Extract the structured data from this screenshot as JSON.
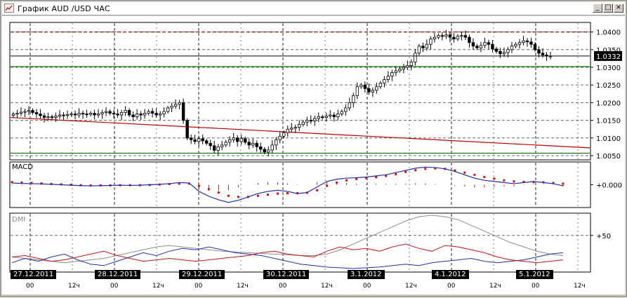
{
  "window": {
    "title": "График AUD /USD ЧАС",
    "buttons": {
      "minimize": "_",
      "maximize": "□",
      "close": "×"
    }
  },
  "chart_data": [
    {
      "type": "candlestick",
      "name": "AUD/USD",
      "ylim": [
        1.004,
        1.0425
      ],
      "y_ticks": [
        "1.0400",
        "1.0350",
        "1.0300",
        "1.0250",
        "1.0200",
        "1.0150",
        "1.0100",
        "1.0050"
      ],
      "y_tick_values": [
        1.04,
        1.035,
        1.03,
        1.025,
        1.02,
        1.015,
        1.01,
        1.005
      ],
      "current_price": "1.0332",
      "current_price_value": 1.0332,
      "horizontal_lines": [
        {
          "value": 1.04,
          "color": "#c00000",
          "style": "dashed"
        },
        {
          "value": 1.0302,
          "color": "#008000",
          "style": "solid"
        },
        {
          "value": 1.0057,
          "color": "#008000",
          "style": "solid"
        }
      ],
      "trend_line": {
        "from_bar": 0,
        "from_value": 1.0158,
        "to_bar": 140,
        "to_value": 1.0072,
        "color": "#c00000"
      },
      "close_series": [
        1.0168,
        1.017,
        1.0173,
        1.0175,
        1.0178,
        1.0172,
        1.0168,
        1.0163,
        1.0158,
        1.016,
        1.0158,
        1.0162,
        1.0165,
        1.0164,
        1.0166,
        1.0168,
        1.0165,
        1.017,
        1.0168,
        1.0167,
        1.017,
        1.0165,
        1.0168,
        1.0172,
        1.0175,
        1.017,
        1.0168,
        1.0165,
        1.0172,
        1.0178,
        1.0165,
        1.016,
        1.0168,
        1.0165,
        1.017,
        1.0175,
        1.017,
        1.0165,
        1.0168,
        1.0175,
        1.0185,
        1.019,
        1.0195,
        1.02,
        1.015,
        1.01,
        1.0095,
        1.009,
        1.0098,
        1.0092,
        1.0085,
        1.0078,
        1.0065,
        1.0075,
        1.008,
        1.0088,
        1.0095,
        1.01,
        1.009,
        1.0098,
        1.0088,
        1.008,
        1.0085,
        1.0075,
        1.0068,
        1.006,
        1.0066,
        1.008,
        1.0095,
        1.0105,
        1.0115,
        1.0125,
        1.0128,
        1.013,
        1.0138,
        1.0145,
        1.015,
        1.0148,
        1.0155,
        1.016,
        1.0158,
        1.0162,
        1.0165,
        1.016,
        1.0168,
        1.0175,
        1.0185,
        1.02,
        1.022,
        1.0245,
        1.025,
        1.024,
        1.023,
        1.0235,
        1.0245,
        1.0255,
        1.0265,
        1.0275,
        1.0285,
        1.029,
        1.0295,
        1.03,
        1.0305,
        1.0315,
        1.034,
        1.036,
        1.0355,
        1.0365,
        1.038,
        1.0385,
        1.039,
        1.0388,
        1.0392,
        1.0385,
        1.038,
        1.0388,
        1.039,
        1.0385,
        1.037,
        1.036,
        1.0355,
        1.0362,
        1.037,
        1.0365,
        1.0352,
        1.0345,
        1.0338,
        1.0342,
        1.035,
        1.036,
        1.0365,
        1.037,
        1.0375,
        1.0372,
        1.0365,
        1.035,
        1.034,
        1.0335,
        1.0332,
        1.0332
      ]
    },
    {
      "type": "line",
      "name": "MACD",
      "label": "MACD",
      "ylim": [
        -1.0,
        1.0
      ],
      "zero_label": "+0.000",
      "series": [
        {
          "name": "macd",
          "color": "#1f2fb4",
          "values": [
            0.08,
            0.06,
            0.05,
            0.04,
            0.02,
            0.0,
            -0.02,
            -0.04,
            -0.05,
            -0.04,
            -0.03,
            -0.02,
            -0.03,
            -0.02,
            0.0,
            0.02,
            0.05,
            0.1,
            0.08,
            -0.3,
            -0.52,
            -0.68,
            -0.8,
            -0.7,
            -0.55,
            -0.4,
            -0.3,
            -0.25,
            -0.3,
            -0.4,
            -0.35,
            -0.1,
            0.15,
            0.25,
            0.3,
            0.32,
            0.35,
            0.4,
            0.45,
            0.55,
            0.65,
            0.75,
            0.8,
            0.78,
            0.72,
            0.6,
            0.45,
            0.3,
            0.2,
            0.15,
            0.1,
            0.05,
            0.1,
            0.15,
            0.1,
            0.05,
            -0.05
          ]
        },
        {
          "name": "signal",
          "color": "#cc1111",
          "values": [
            0.12,
            0.1,
            0.08,
            0.06,
            0.04,
            0.02,
            0.0,
            -0.02,
            -0.03,
            -0.03,
            -0.03,
            -0.02,
            -0.02,
            -0.02,
            -0.01,
            0.01,
            0.03,
            0.05,
            0.05,
            -0.05,
            -0.2,
            -0.35,
            -0.5,
            -0.55,
            -0.55,
            -0.5,
            -0.45,
            -0.4,
            -0.38,
            -0.38,
            -0.36,
            -0.25,
            -0.05,
            0.1,
            0.2,
            0.26,
            0.3,
            0.34,
            0.4,
            0.48,
            0.58,
            0.66,
            0.72,
            0.74,
            0.72,
            0.65,
            0.55,
            0.45,
            0.35,
            0.28,
            0.2,
            0.15,
            0.13,
            0.12,
            0.11,
            0.08,
            0.05
          ]
        }
      ]
    },
    {
      "type": "line",
      "name": "DMI",
      "label": "DMI",
      "ylim": [
        0,
        80
      ],
      "y_ticks": [
        "+50"
      ],
      "y_tick_values": [
        50
      ],
      "series": [
        {
          "name": "adx",
          "color": "#8c8c8c",
          "values": [
            20,
            18,
            16,
            14,
            12,
            14,
            16,
            18,
            22,
            26,
            30,
            34,
            36,
            34,
            32,
            30,
            28,
            27,
            26,
            25,
            24,
            23,
            22,
            22,
            24,
            30,
            38,
            46,
            54,
            62,
            70,
            76,
            78,
            76,
            72,
            64,
            56,
            48,
            40,
            34,
            28,
            24,
            22
          ]
        },
        {
          "name": "plus_di",
          "color": "#1f2fb4",
          "values": [
            12,
            18,
            14,
            20,
            24,
            16,
            10,
            8,
            14,
            20,
            26,
            22,
            28,
            32,
            30,
            34,
            30,
            26,
            24,
            22,
            18,
            14,
            10,
            8,
            6,
            5,
            4,
            5,
            6,
            8,
            10,
            8,
            12,
            14,
            16,
            18,
            14,
            12,
            14,
            16,
            20,
            24,
            26
          ]
        },
        {
          "name": "minus_di",
          "color": "#cc1111",
          "values": [
            20,
            22,
            18,
            14,
            16,
            20,
            24,
            28,
            22,
            18,
            14,
            16,
            18,
            16,
            14,
            16,
            18,
            20,
            22,
            26,
            28,
            24,
            22,
            20,
            28,
            34,
            30,
            32,
            28,
            34,
            38,
            32,
            28,
            36,
            34,
            30,
            26,
            20,
            16,
            14,
            12,
            14,
            16
          ]
        }
      ]
    }
  ],
  "x_axis": {
    "dates": [
      "27.12.2011",
      "28.12.2011",
      "29.12.2011",
      "30.12.2011",
      "3.1.2012",
      "4.1.2012",
      "5.1.2012"
    ],
    "hours": [
      "00",
      "12ч",
      "00",
      "12ч",
      "00",
      "12ч",
      "00",
      "12ч",
      "00",
      "12ч",
      "00",
      "12ч",
      "00",
      "12ч"
    ]
  }
}
